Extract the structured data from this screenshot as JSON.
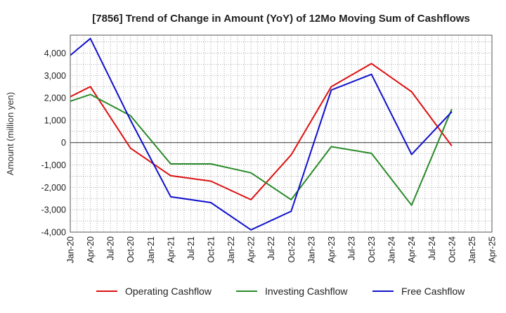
{
  "chart_data": {
    "type": "line",
    "title": "[7856]  Trend of Change in Amount (YoY) of 12Mo Moving Sum of Cashflows",
    "xlabel": "",
    "ylabel": "Amount (million yen)",
    "ylim": [
      -4000,
      4800
    ],
    "yticks": [
      -4000,
      -3000,
      -2000,
      -1000,
      0,
      1000,
      2000,
      3000,
      4000
    ],
    "ytick_labels": [
      "-4,000",
      "-3,000",
      "-2,000",
      "-1,000",
      "0",
      "1,000",
      "2,000",
      "3,000",
      "4,000"
    ],
    "categories": [
      "Jan-20",
      "Apr-20",
      "Jul-20",
      "Oct-20",
      "Jan-21",
      "Apr-21",
      "Jul-21",
      "Oct-21",
      "Jan-22",
      "Apr-22",
      "Jul-22",
      "Oct-22",
      "Jan-23",
      "Apr-23",
      "Jul-23",
      "Oct-23",
      "Jan-24",
      "Apr-24",
      "Jul-24",
      "Oct-24",
      "Jan-25",
      "Apr-25"
    ],
    "grid": true,
    "legend_position": "bottom",
    "series": [
      {
        "name": "Operating Cashflow",
        "color": "#dd1111",
        "values": [
          2050,
          2500,
          null,
          -250,
          null,
          -1480,
          null,
          -1720,
          null,
          -2550,
          null,
          -550,
          null,
          2500,
          null,
          3530,
          null,
          2270,
          null,
          -150,
          null,
          null
        ]
      },
      {
        "name": "Investing Cashflow",
        "color": "#2a8a2a",
        "values": [
          1850,
          2150,
          null,
          1200,
          null,
          -950,
          null,
          -950,
          null,
          -1350,
          null,
          -2550,
          null,
          -180,
          null,
          -480,
          null,
          -2800,
          null,
          1500,
          null,
          null
        ]
      },
      {
        "name": "Free Cashflow",
        "color": "#1111cc",
        "values": [
          3900,
          4650,
          null,
          1000,
          null,
          -2420,
          null,
          -2680,
          null,
          -3900,
          null,
          -3070,
          null,
          2350,
          null,
          3050,
          null,
          -530,
          null,
          1380,
          null,
          null
        ]
      }
    ]
  }
}
